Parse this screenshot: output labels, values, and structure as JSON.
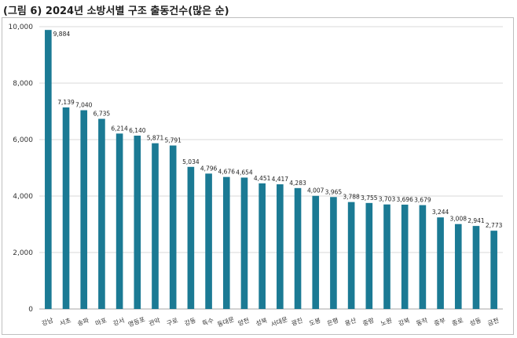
{
  "chart_data": {
    "type": "bar",
    "title": "(그림 6) 2024년 소방서별 구조 출동건수(많은 순)",
    "xlabel": "",
    "ylabel": "",
    "ylim": [
      0,
      10000
    ],
    "yticks": [
      "0",
      "2,000",
      "4,000",
      "6,000",
      "8,000",
      "10,000"
    ],
    "grid": true,
    "legend": "none",
    "bar_color": "#1b7a94",
    "categories": [
      "강남",
      "서초",
      "송파",
      "마포",
      "강서",
      "영등포",
      "관악",
      "구로",
      "강동",
      "특수",
      "동대문",
      "양천",
      "성북",
      "서대문",
      "광진",
      "도봉",
      "은평",
      "용산",
      "중랑",
      "노원",
      "강북",
      "동작",
      "중부",
      "종로",
      "성동",
      "금천"
    ],
    "values": [
      9884,
      7139,
      7040,
      6735,
      6214,
      6140,
      5871,
      5791,
      5034,
      4796,
      4676,
      4654,
      4451,
      4417,
      4283,
      4007,
      3965,
      3788,
      3755,
      3703,
      3696,
      3679,
      3244,
      3008,
      2941,
      2773
    ],
    "value_labels": [
      "9,884",
      "7,139",
      "7,040",
      "6,735",
      "6,214",
      "6,140",
      "5,871",
      "5,791",
      "5,034",
      "4,796",
      "4,676",
      "4,654",
      "4,451",
      "4,417",
      "4,283",
      "4,007",
      "3,965",
      "3,788",
      "3,755",
      "3,703",
      "3,696",
      "3,679",
      "3,244",
      "3,008",
      "2,941",
      "2,773"
    ]
  }
}
